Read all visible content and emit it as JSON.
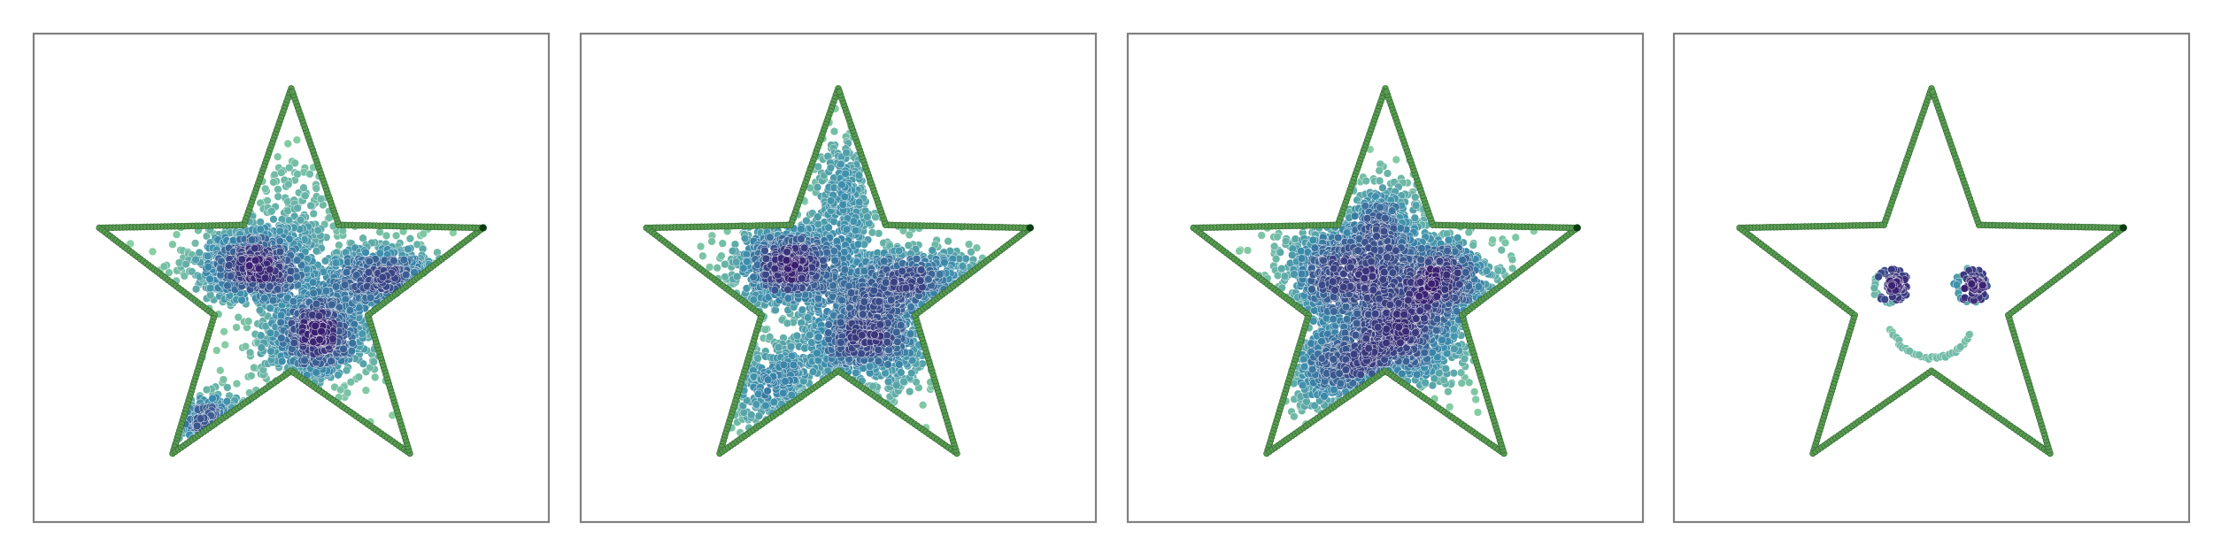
{
  "figure": {
    "panel_count": 4,
    "colors": {
      "frame": "#808080",
      "boundary": "#5a9a52",
      "boundary_edge": "#2f6b30",
      "boundary_end": "#0c3d12",
      "colormap_low": "#8cd2a3",
      "colormap_mid": "#3b8cac",
      "colormap_high": "#3a1f70"
    }
  },
  "chart_data": [
    {
      "type": "scatter",
      "title": "",
      "xlabel": "",
      "ylabel": "",
      "xlim": [
        -1,
        1
      ],
      "ylim": [
        -1,
        1
      ],
      "grid": false,
      "legend": "none",
      "boundary": {
        "shape": "star",
        "points": 5,
        "outer_radius": 0.95,
        "inner_radius": 0.38
      },
      "clusters": [
        {
          "cx": -0.18,
          "cy": 0.12,
          "sx": 0.14,
          "sy": 0.09,
          "n": 820
        },
        {
          "cx": 0.12,
          "cy": -0.22,
          "sx": 0.13,
          "sy": 0.11,
          "n": 900
        },
        {
          "cx": 0.44,
          "cy": 0.05,
          "sx": 0.17,
          "sy": 0.08,
          "n": 620
        },
        {
          "cx": -0.37,
          "cy": -0.62,
          "sx": 0.09,
          "sy": 0.06,
          "n": 230
        },
        {
          "cx": 0.0,
          "cy": 0.3,
          "sx": 0.09,
          "sy": 0.17,
          "n": 200
        },
        {
          "cx": 0.0,
          "cy": 0.0,
          "sx": 0.45,
          "sy": 0.35,
          "n": 140
        }
      ]
    },
    {
      "type": "scatter",
      "title": "",
      "xlabel": "",
      "ylabel": "",
      "xlim": [
        -1,
        1
      ],
      "ylim": [
        -1,
        1
      ],
      "grid": false,
      "legend": "none",
      "boundary": {
        "shape": "star",
        "points": 5,
        "outer_radius": 0.95,
        "inner_radius": 0.38
      },
      "clusters": [
        {
          "cx": -0.22,
          "cy": 0.12,
          "sx": 0.15,
          "sy": 0.1,
          "n": 800
        },
        {
          "cx": 0.14,
          "cy": -0.22,
          "sx": 0.14,
          "sy": 0.13,
          "n": 850
        },
        {
          "cx": 0.35,
          "cy": 0.05,
          "sx": 0.18,
          "sy": 0.08,
          "n": 500
        },
        {
          "cx": -0.3,
          "cy": -0.45,
          "sx": 0.14,
          "sy": 0.13,
          "n": 300
        },
        {
          "cx": 0.02,
          "cy": 0.45,
          "sx": 0.08,
          "sy": 0.16,
          "n": 250
        },
        {
          "cx": 0.0,
          "cy": 0.0,
          "sx": 0.45,
          "sy": 0.35,
          "n": 200
        }
      ]
    },
    {
      "type": "scatter",
      "title": "",
      "xlabel": "",
      "ylabel": "",
      "xlim": [
        -1,
        1
      ],
      "ylim": [
        -1,
        1
      ],
      "grid": false,
      "legend": "none",
      "boundary": {
        "shape": "star",
        "points": 5,
        "outer_radius": 0.95,
        "inner_radius": 0.38
      },
      "clusters": [
        {
          "cx": -0.18,
          "cy": 0.08,
          "sx": 0.17,
          "sy": 0.12,
          "n": 900
        },
        {
          "cx": 0.26,
          "cy": 0.05,
          "sx": 0.13,
          "sy": 0.1,
          "n": 600
        },
        {
          "cx": 0.05,
          "cy": -0.22,
          "sx": 0.18,
          "sy": 0.14,
          "n": 900
        },
        {
          "cx": -0.22,
          "cy": -0.38,
          "sx": 0.15,
          "sy": 0.1,
          "n": 400
        },
        {
          "cx": 0.0,
          "cy": 0.33,
          "sx": 0.1,
          "sy": 0.12,
          "n": 300
        },
        {
          "cx": 0.0,
          "cy": 0.0,
          "sx": 0.4,
          "sy": 0.32,
          "n": 180
        }
      ]
    },
    {
      "type": "scatter",
      "title": "",
      "xlabel": "",
      "ylabel": "",
      "xlim": [
        -1,
        1
      ],
      "ylim": [
        -1,
        1
      ],
      "grid": false,
      "legend": "none",
      "boundary": {
        "shape": "star",
        "points": 5,
        "outer_radius": 0.95,
        "inner_radius": 0.38
      },
      "face": {
        "eyes": [
          {
            "cx": -0.19,
            "cy": 0.02,
            "ring_r": 0.075,
            "core_cx": -0.17,
            "core_cy": 0.02,
            "core_r": 0.035
          },
          {
            "cx": 0.19,
            "cy": 0.02,
            "ring_r": 0.075,
            "core_cx": 0.21,
            "core_cy": 0.02,
            "core_r": 0.035
          }
        ],
        "smile": {
          "cx": 0.0,
          "cy": -0.12,
          "r": 0.2,
          "arc_deg": [
            200,
            335
          ]
        }
      }
    }
  ]
}
